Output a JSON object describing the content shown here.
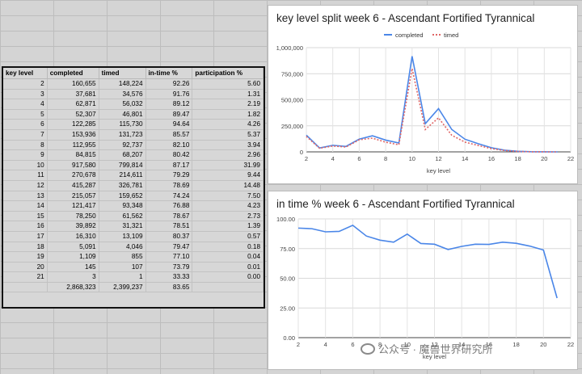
{
  "table": {
    "headers": [
      "key level",
      "completed",
      "timed",
      "in-time %",
      "participation %"
    ],
    "rows": [
      [
        "2",
        "160,655",
        "148,224",
        "92.26",
        "5.60"
      ],
      [
        "3",
        "37,681",
        "34,576",
        "91.76",
        "1.31"
      ],
      [
        "4",
        "62,871",
        "56,032",
        "89.12",
        "2.19"
      ],
      [
        "5",
        "52,307",
        "46,801",
        "89.47",
        "1.82"
      ],
      [
        "6",
        "122,285",
        "115,730",
        "94.64",
        "4.26"
      ],
      [
        "7",
        "153,936",
        "131,723",
        "85.57",
        "5.37"
      ],
      [
        "8",
        "112,955",
        "92,737",
        "82.10",
        "3.94"
      ],
      [
        "9",
        "84,815",
        "68,207",
        "80.42",
        "2.96"
      ],
      [
        "10",
        "917,580",
        "799,814",
        "87.17",
        "31.99"
      ],
      [
        "11",
        "270,678",
        "214,611",
        "79.29",
        "9.44"
      ],
      [
        "12",
        "415,287",
        "326,781",
        "78.69",
        "14.48"
      ],
      [
        "13",
        "215,057",
        "159,652",
        "74.24",
        "7.50"
      ],
      [
        "14",
        "121,417",
        "93,348",
        "76.88",
        "4.23"
      ],
      [
        "15",
        "78,250",
        "61,562",
        "78.67",
        "2.73"
      ],
      [
        "16",
        "39,892",
        "31,321",
        "78.51",
        "1.39"
      ],
      [
        "17",
        "16,310",
        "13,109",
        "80.37",
        "0.57"
      ],
      [
        "18",
        "5,091",
        "4,046",
        "79.47",
        "0.18"
      ],
      [
        "19",
        "1,109",
        "855",
        "77.10",
        "0.04"
      ],
      [
        "20",
        "145",
        "107",
        "73.79",
        "0.01"
      ],
      [
        "21",
        "3",
        "1",
        "33.33",
        "0.00"
      ],
      [
        "",
        "2,868,323",
        "2,399,237",
        "83.65",
        ""
      ]
    ]
  },
  "watermark": "公众号 · 魔兽世界研究所",
  "chart_data": [
    {
      "type": "line",
      "title": "key level split week 6 - Ascendant Fortified Tyrannical",
      "xlabel": "key level",
      "ylabel": "",
      "x": [
        2,
        3,
        4,
        5,
        6,
        7,
        8,
        9,
        10,
        11,
        12,
        13,
        14,
        15,
        16,
        17,
        18,
        19,
        20,
        21
      ],
      "xlim": [
        2,
        22
      ],
      "xticks": [
        2,
        4,
        6,
        8,
        10,
        12,
        14,
        16,
        18,
        20,
        22
      ],
      "ylim": [
        0,
        1000000
      ],
      "yticks": [
        0,
        250000,
        500000,
        750000,
        1000000
      ],
      "ytick_labels": [
        "0",
        "250,000",
        "500,000",
        "750,000",
        "1,000,000"
      ],
      "legend_position": "top-center",
      "grid": true,
      "series": [
        {
          "name": "completed",
          "color": "#4a86e8",
          "dashed": false,
          "values": [
            160655,
            37681,
            62871,
            52307,
            122285,
            153936,
            112955,
            84815,
            917580,
            270678,
            415287,
            215057,
            121417,
            78250,
            39892,
            16310,
            5091,
            1109,
            145,
            3
          ]
        },
        {
          "name": "timed",
          "color": "#e06666",
          "dashed": true,
          "values": [
            148224,
            34576,
            56032,
            46801,
            115730,
            131723,
            92737,
            68207,
            799814,
            214611,
            326781,
            159652,
            93348,
            61562,
            31321,
            13109,
            4046,
            855,
            107,
            1
          ]
        }
      ]
    },
    {
      "type": "line",
      "title": "in time % week 6 - Ascendant Fortified Tyrannical",
      "xlabel": "key level",
      "ylabel": "",
      "x": [
        2,
        3,
        4,
        5,
        6,
        7,
        8,
        9,
        10,
        11,
        12,
        13,
        14,
        15,
        16,
        17,
        18,
        19,
        20,
        21
      ],
      "xlim": [
        2,
        22
      ],
      "xticks": [
        2,
        4,
        6,
        8,
        10,
        12,
        14,
        16,
        18,
        20,
        22
      ],
      "ylim": [
        0,
        100
      ],
      "yticks": [
        0,
        25,
        50,
        75,
        100
      ],
      "ytick_labels": [
        "0.00",
        "25.00",
        "50.00",
        "75.00",
        "100.00"
      ],
      "grid": true,
      "series": [
        {
          "color": "#4a86e8",
          "dashed": false,
          "values": [
            92.26,
            91.76,
            89.12,
            89.47,
            94.64,
            85.57,
            82.1,
            80.42,
            87.17,
            79.29,
            78.69,
            74.24,
            76.88,
            78.67,
            78.51,
            80.37,
            79.47,
            77.1,
            73.79,
            33.33
          ]
        }
      ]
    }
  ]
}
